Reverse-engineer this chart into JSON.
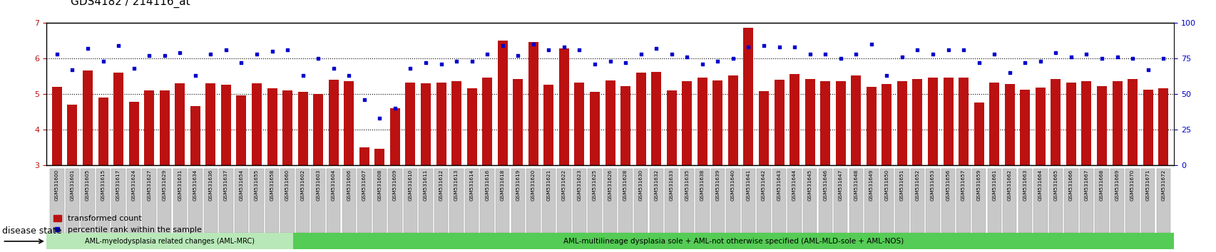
{
  "title": "GDS4182 / 214116_at",
  "ylim_left": [
    3,
    7
  ],
  "ylim_right": [
    0,
    100
  ],
  "yticks_left": [
    3,
    4,
    5,
    6,
    7
  ],
  "yticks_right": [
    0,
    25,
    50,
    75,
    100
  ],
  "bar_color": "#bb1111",
  "dot_color": "#0000cc",
  "bg_color": "#ffffff",
  "tick_bg_color": "#c8c8c8",
  "tick_border_color": "#999999",
  "group1_color": "#b8e8b8",
  "group2_color": "#55cc55",
  "disease_state_label": "disease state",
  "group1_label": "AML-myelodysplasia related changes (AML-MRC)",
  "group2_label": "AML-multilineage dysplasia sole + AML-not otherwise specified (AML-MLD-sole + AML-NOS)",
  "legend1": "transformed count",
  "legend2": "percentile rank within the sample",
  "samples": [
    "GSM531600",
    "GSM531601",
    "GSM531605",
    "GSM531615",
    "GSM531617",
    "GSM531624",
    "GSM531627",
    "GSM531629",
    "GSM531631",
    "GSM531634",
    "GSM531636",
    "GSM531637",
    "GSM531654",
    "GSM531655",
    "GSM531658",
    "GSM531660",
    "GSM531602",
    "GSM531603",
    "GSM531604",
    "GSM531606",
    "GSM531607",
    "GSM531608",
    "GSM531609",
    "GSM531610",
    "GSM531611",
    "GSM531612",
    "GSM531613",
    "GSM531614",
    "GSM531616",
    "GSM531618",
    "GSM531619",
    "GSM531620",
    "GSM531621",
    "GSM531622",
    "GSM531623",
    "GSM531625",
    "GSM531626",
    "GSM531628",
    "GSM531630",
    "GSM531632",
    "GSM531633",
    "GSM531635",
    "GSM531638",
    "GSM531639",
    "GSM531640",
    "GSM531641",
    "GSM531642",
    "GSM531643",
    "GSM531644",
    "GSM531645",
    "GSM531646",
    "GSM531647",
    "GSM531648",
    "GSM531649",
    "GSM531650",
    "GSM531651",
    "GSM531652",
    "GSM531653",
    "GSM531656",
    "GSM531657",
    "GSM531659",
    "GSM531661",
    "GSM531662",
    "GSM531663",
    "GSM531664",
    "GSM531665",
    "GSM531666",
    "GSM531667",
    "GSM531668",
    "GSM531669",
    "GSM531670",
    "GSM531671",
    "GSM531672"
  ],
  "bar_values": [
    5.2,
    4.7,
    5.65,
    4.9,
    5.6,
    4.78,
    5.1,
    5.1,
    5.3,
    4.65,
    5.3,
    5.25,
    4.95,
    5.3,
    5.15,
    5.1,
    5.05,
    5.0,
    5.4,
    5.35,
    3.5,
    3.45,
    4.6,
    5.32,
    5.3,
    5.32,
    5.35,
    5.15,
    5.45,
    6.5,
    5.42,
    6.45,
    5.25,
    6.28,
    5.32,
    5.05,
    5.38,
    5.22,
    5.6,
    5.62,
    5.1,
    5.35,
    5.45,
    5.38,
    5.52,
    6.85,
    5.08,
    5.4,
    5.55,
    5.42,
    5.35,
    5.35,
    5.52,
    5.2,
    5.28,
    5.35,
    5.42,
    5.45,
    5.45,
    5.45,
    4.75,
    5.32,
    5.28,
    5.12,
    5.18,
    5.42,
    5.32,
    5.35,
    5.22,
    5.35,
    5.42,
    5.12,
    5.15
  ],
  "dot_values_pct": [
    78,
    67,
    82,
    73,
    84,
    68,
    77,
    77,
    79,
    63,
    78,
    81,
    72,
    78,
    80,
    81,
    63,
    75,
    68,
    63,
    46,
    33,
    40,
    68,
    72,
    71,
    73,
    73,
    78,
    84,
    77,
    85,
    81,
    83,
    81,
    71,
    73,
    72,
    78,
    82,
    78,
    76,
    71,
    73,
    75,
    83,
    84,
    83,
    83,
    78,
    78,
    75,
    78,
    85,
    63,
    76,
    81,
    78,
    81,
    81,
    72,
    78,
    65,
    72,
    73,
    79,
    76,
    78,
    75,
    76,
    75,
    67,
    75
  ],
  "n_group1": 16,
  "n_group2": 57
}
